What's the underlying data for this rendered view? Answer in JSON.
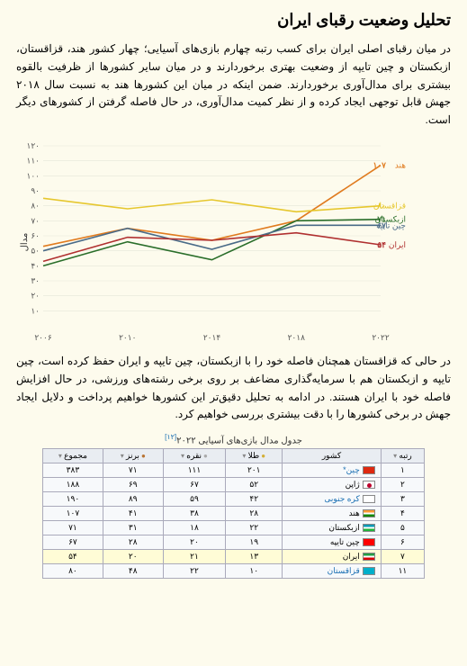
{
  "title": "تحلیل وضعیت رقبای ایران",
  "para1": "در میان رقبای اصلی ایران برای کسب رتبه چهارم بازی‌های آسیایی؛ چهار کشور هند، قزاقستان، ازبکستان و چین تایپه از وضعیت بهتری برخوردارند و در میان سایر کشورها از ظرفیت بالقوه بیشتری برای مدال‌آوری برخوردارند. ضمن اینکه در میان این کشورها هند به نسبت سال ۲۰۱۸ جهش قابل توجهی ایجاد کرده و از نظر کمیت مدال‌آوری، در حال فاصله گرفتن از کشورهای دیگر است.",
  "para2": "در حالی که قزاقستان همچنان فاصله خود را با ازبکستان، چین تایپه و ایران حفظ کرده است، چین تایپه و ازبکستان هم با سرمایه‌گذاری مضاعف بر روی برخی رشته‌های ورزشی، در حال افزایش فاصله خود با ایران هستند. در ادامه به تحلیل دقیق‌تر این کشورها خواهیم پرداخت و دلایل ایجاد جهش در برخی کشورها را با دقت بیشتری بررسی خواهیم کرد.",
  "chart": {
    "y_label": "مدال",
    "x_ticks": [
      "۲۰۰۶",
      "۲۰۱۰",
      "۲۰۱۴",
      "۲۰۱۸",
      "۲۰۲۲"
    ],
    "y_ticks": [
      "۱۰",
      "۲۰",
      "۳۰",
      "۴۰",
      "۵۰",
      "۶۰",
      "۷۰",
      "۸۰",
      "۹۰",
      "۱۰۰",
      "۱۱۰",
      "۱۲۰"
    ],
    "series": [
      {
        "name": "هند",
        "color": "#e07b1f",
        "values": [
          53,
          65,
          57,
          70,
          107
        ],
        "end": "۱۰۷"
      },
      {
        "name": "قزاقستان",
        "color": "#e6c72e",
        "values": [
          85,
          78,
          84,
          76,
          80
        ],
        "end": "۸۰"
      },
      {
        "name": "ازبکستان",
        "color": "#2a6e2a",
        "values": [
          40,
          56,
          44,
          70,
          71
        ],
        "end": "۷۱"
      },
      {
        "name": "چین تایپه",
        "color": "#4a6b88",
        "values": [
          50,
          65,
          51,
          67,
          67
        ],
        "end": "۶۷"
      },
      {
        "name": "ایران",
        "color": "#b03030",
        "values": [
          43,
          59,
          57,
          62,
          54
        ],
        "end": "۵۴"
      }
    ]
  },
  "table": {
    "caption": "جدول مدال بازی‌های آسیایی ۲۰۲۲",
    "sup": "[۱۲]",
    "headers": {
      "rank": "رتبه",
      "country": "کشور",
      "gold": "طلا",
      "silver": "نقره",
      "bronze": "برنز",
      "total": "مجموع"
    },
    "rows": [
      {
        "rank": "۱",
        "country": "چین",
        "link": true,
        "flag": "#de2910",
        "gold": "۲۰۱",
        "silver": "۱۱۱",
        "bronze": "۷۱",
        "total": "۳۸۳",
        "star": "*"
      },
      {
        "rank": "۲",
        "country": "ژاپن",
        "flag": "#fff",
        "dot": "#bc002d",
        "gold": "۵۲",
        "silver": "۶۷",
        "bronze": "۶۹",
        "total": "۱۸۸"
      },
      {
        "rank": "۳",
        "country": "کره جنوبی",
        "link": true,
        "flag": "#fff",
        "kor": true,
        "gold": "۴۲",
        "silver": "۵۹",
        "bronze": "۸۹",
        "total": "۱۹۰"
      },
      {
        "rank": "۴",
        "country": "هند",
        "flag": "#ff9933",
        "tri": [
          "#ff9933",
          "#fff",
          "#138808"
        ],
        "gold": "۲۸",
        "silver": "۳۸",
        "bronze": "۴۱",
        "total": "۱۰۷"
      },
      {
        "rank": "۵",
        "country": "ازبکستان",
        "flag": "#1eb53a",
        "tri": [
          "#0099b5",
          "#fff",
          "#1eb53a"
        ],
        "gold": "۲۲",
        "silver": "۱۸",
        "bronze": "۳۱",
        "total": "۷۱"
      },
      {
        "rank": "۶",
        "country": "چین تایپه",
        "flag": "#fe0000",
        "gold": "۱۹",
        "silver": "۲۰",
        "bronze": "۲۸",
        "total": "۶۷"
      },
      {
        "rank": "۷",
        "country": "ایران",
        "hl": true,
        "flag": "#239f40",
        "tri": [
          "#239f40",
          "#fff",
          "#da0000"
        ],
        "gold": "۱۳",
        "silver": "۲۱",
        "bronze": "۲۰",
        "total": "۵۴"
      },
      {
        "rank": "۱۱",
        "country": "قزاقستان",
        "link": true,
        "flag": "#00afca",
        "gold": "۱۰",
        "silver": "۲۲",
        "bronze": "۴۸",
        "total": "۸۰"
      }
    ]
  }
}
